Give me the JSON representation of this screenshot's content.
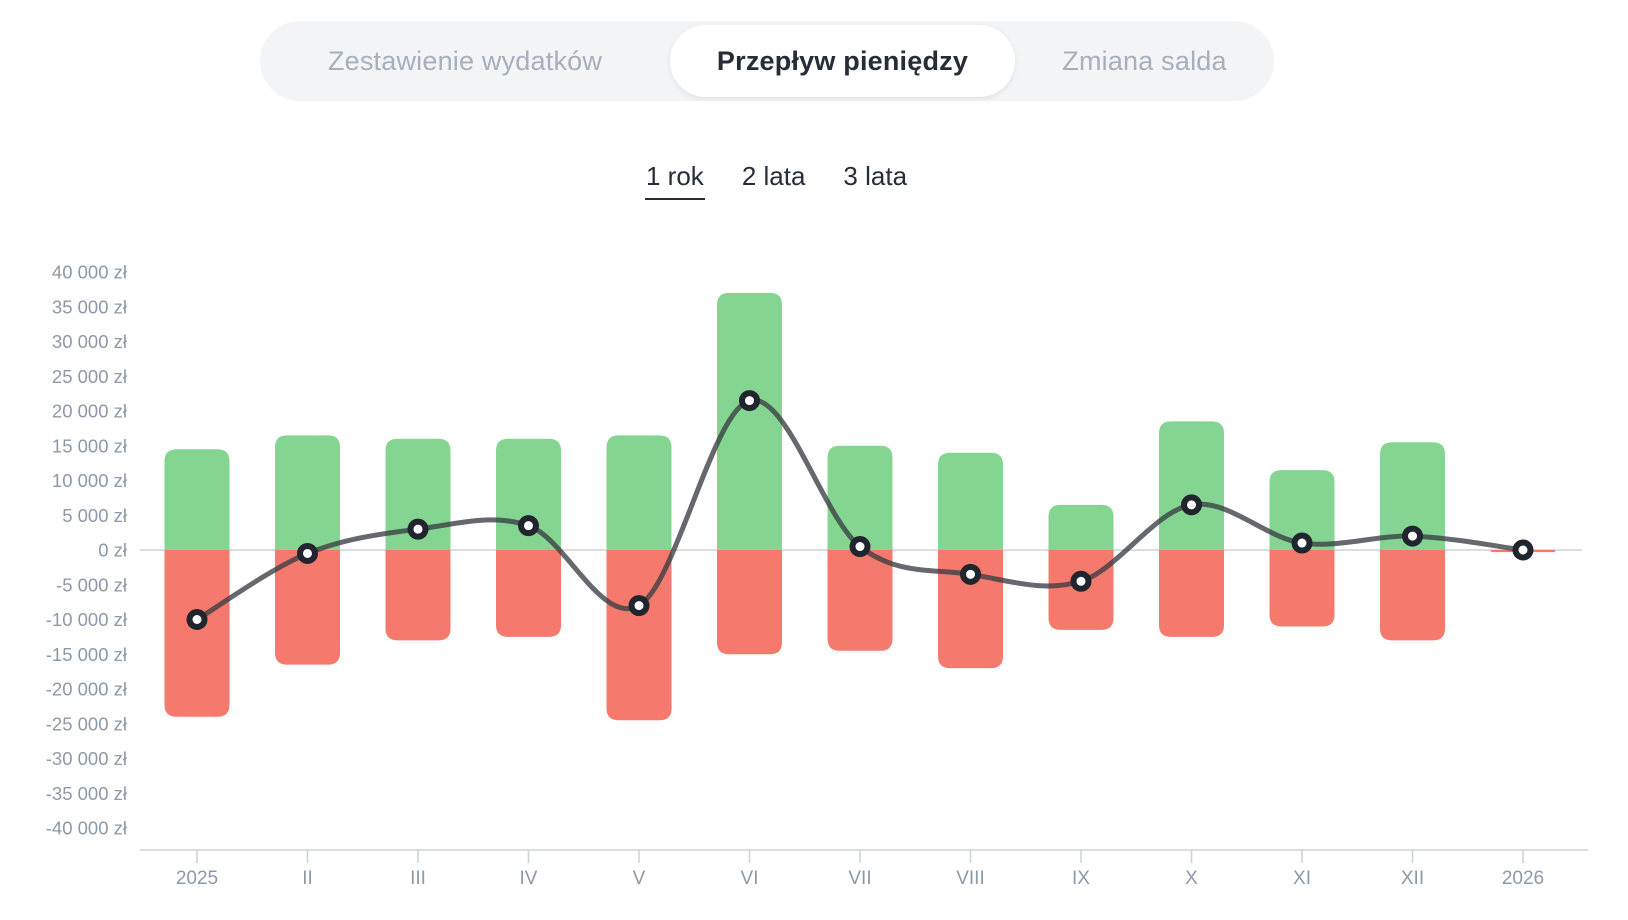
{
  "tabs": {
    "items": [
      {
        "label": "Zestawienie wydatków",
        "active": false
      },
      {
        "label": "Przepływ pieniędzy",
        "active": true
      },
      {
        "label": "Zmiana salda",
        "active": false
      }
    ]
  },
  "period_selector": {
    "options": [
      {
        "label": "1 rok",
        "selected": true
      },
      {
        "label": "2 lata",
        "selected": false
      },
      {
        "label": "3 lata",
        "selected": false
      }
    ]
  },
  "chart_data": {
    "type": "bar+line",
    "title": "",
    "xlabel": "",
    "ylabel": "",
    "legend": "none",
    "grid": "zero-line-only",
    "ylim": [
      -40000,
      40000
    ],
    "y_tick_step": 5000,
    "currency_suffix": "zł",
    "categories": [
      "2025",
      "II",
      "III",
      "IV",
      "V",
      "VI",
      "VII",
      "VIII",
      "IX",
      "X",
      "XI",
      "XII",
      "2026"
    ],
    "series": [
      {
        "name": "income",
        "chart": "bar",
        "color": "#84d592",
        "values": [
          14500,
          16500,
          16000,
          16000,
          16500,
          37000,
          15000,
          14000,
          6500,
          18500,
          11500,
          15500,
          0
        ]
      },
      {
        "name": "expenses",
        "chart": "bar",
        "color": "#f5796c",
        "values": [
          -24000,
          -16500,
          -13000,
          -12500,
          -24500,
          -15000,
          -14500,
          -17000,
          -11500,
          -12500,
          -11000,
          -13000,
          -300
        ]
      },
      {
        "name": "net-cash-flow",
        "chart": "line",
        "color": "rgba(58,62,66,0.78)",
        "marker": "white-dot",
        "values": [
          -10000,
          -500,
          3000,
          3500,
          -8000,
          21500,
          500,
          -3500,
          -4500,
          6500,
          1000,
          2000,
          0
        ]
      }
    ],
    "y_ticks": [
      {
        "value": 40000,
        "label": "40 000 zł"
      },
      {
        "value": 35000,
        "label": "35 000 zł"
      },
      {
        "value": 30000,
        "label": "30 000 zł"
      },
      {
        "value": 25000,
        "label": "25 000 zł"
      },
      {
        "value": 20000,
        "label": "20 000 zł"
      },
      {
        "value": 15000,
        "label": "15 000 zł"
      },
      {
        "value": 10000,
        "label": "10 000 zł"
      },
      {
        "value": 5000,
        "label": "5 000 zł"
      },
      {
        "value": 0,
        "label": "0 zł"
      },
      {
        "value": -5000,
        "label": "-5 000 zł"
      },
      {
        "value": -10000,
        "label": "-10 000 zł"
      },
      {
        "value": -15000,
        "label": "-15 000 zł"
      },
      {
        "value": -20000,
        "label": "-20 000 zł"
      },
      {
        "value": -25000,
        "label": "-25 000 zł"
      },
      {
        "value": -30000,
        "label": "-30 000 zł"
      },
      {
        "value": -35000,
        "label": "-35 000 zł"
      },
      {
        "value": -40000,
        "label": "-40 000 zł"
      }
    ]
  },
  "colors": {
    "income_bar": "#84d592",
    "expense_bar": "#f5796c",
    "net_line": "rgba(58,62,66,0.78)",
    "marker_ring": "#21252d",
    "marker_fill": "#ffffff",
    "zero_line": "#d2d2d2",
    "axis_line": "#cdd3da",
    "axis_text": "#8e99a8",
    "tabbar_bg": "#f2f4f6",
    "tab_inactive_text": "#a6afba",
    "tab_active_text": "#262d37"
  }
}
